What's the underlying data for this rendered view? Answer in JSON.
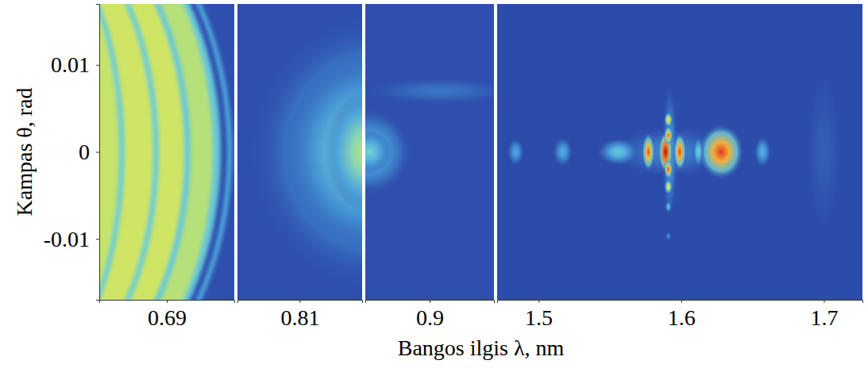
{
  "chart_data": {
    "type": "heatmap",
    "y_label": "Kampas θ, rad",
    "x_label": "Bangos ilgis λ, nm",
    "ylim": [
      -0.017,
      0.017
    ],
    "yticks": [
      0.01,
      0,
      -0.01
    ],
    "color_range": [
      0,
      1
    ],
    "panels": [
      {
        "type": "fringes",
        "xlim": [
          0.665,
          0.715
        ],
        "xticks": [
          0.69
        ],
        "background": 0.1,
        "spots": [
          {
            "x": 0.64,
            "y": 0,
            "rx": 0.0741,
            "ry": 0.032,
            "intensity": 0.27
          },
          {
            "x": 0.64,
            "y": 0,
            "rx": 0.0724,
            "ry": 0.0315,
            "intensity": 0.1
          },
          {
            "x": 0.64,
            "y": 0,
            "rx": 0.07,
            "ry": 0.031,
            "intensity": 0.33
          },
          {
            "x": 0.64,
            "y": 0,
            "rx": 0.0671,
            "ry": 0.031,
            "intensity": 0.45
          },
          {
            "x": 0.64,
            "y": 0,
            "rx": 0.0588,
            "ry": 0.029,
            "intensity": 0.33
          },
          {
            "x": 0.64,
            "y": 0,
            "rx": 0.0565,
            "ry": 0.0285,
            "intensity": 0.5
          },
          {
            "x": 0.64,
            "y": 0,
            "rx": 0.0471,
            "ry": 0.027,
            "intensity": 0.34
          },
          {
            "x": 0.64,
            "y": 0,
            "rx": 0.045,
            "ry": 0.0265,
            "intensity": 0.5
          },
          {
            "x": 0.64,
            "y": 0,
            "rx": 0.0344,
            "ry": 0.025,
            "intensity": 0.34
          },
          {
            "x": 0.64,
            "y": 0,
            "rx": 0.0324,
            "ry": 0.0245,
            "intensity": 0.48
          }
        ]
      },
      {
        "type": "spots",
        "xlim": [
          0.78,
          0.84
        ],
        "xticks": [
          0.81
        ],
        "background": 0.1,
        "spots": [
          {
            "x": 0.845,
            "y": 0,
            "rx": 0.06,
            "ry": 0.016,
            "intensity": 0.3
          },
          {
            "x": 0.843,
            "y": 0,
            "rx": 0.04,
            "ry": 0.011,
            "intensity": 0.42
          },
          {
            "x": 0.842,
            "y": 0,
            "rx": 0.02,
            "ry": 0.007,
            "intensity": 0.48
          }
        ]
      },
      {
        "type": "spots",
        "xlim": [
          0.87,
          0.93
        ],
        "xticks": [
          0.9
        ],
        "background": 0.1,
        "spots": [
          {
            "x": 0.905,
            "y": 0.007,
            "rx": 0.035,
            "ry": 0.0015,
            "intensity": 0.17
          },
          {
            "x": 0.872,
            "y": 0,
            "rx": 0.02,
            "ry": 0.005,
            "intensity": 0.3
          },
          {
            "x": 0.872,
            "y": 0,
            "rx": 0.01,
            "ry": 0.0025,
            "intensity": 0.36
          }
        ]
      },
      {
        "type": "spots",
        "xlim": [
          1.471,
          1.727
        ],
        "xticks": [
          1.5,
          1.6,
          1.7
        ],
        "background": 0.09,
        "spots": [
          {
            "x": 1.7,
            "y": 0,
            "rx": 0.012,
            "ry": 0.01,
            "intensity": 0.13
          },
          {
            "x": 1.592,
            "y": 0,
            "rx": 0.04,
            "ry": 0.003,
            "intensity": 0.2
          },
          {
            "x": 1.592,
            "y": 0,
            "rx": 0.0055,
            "ry": 0.008,
            "intensity": 0.25
          },
          {
            "x": 1.484,
            "y": 0,
            "rx": 0.006,
            "ry": 0.0016,
            "intensity": 0.26
          },
          {
            "x": 1.517,
            "y": 0,
            "rx": 0.007,
            "ry": 0.0017,
            "intensity": 0.27
          },
          {
            "x": 1.556,
            "y": 0,
            "rx": 0.015,
            "ry": 0.0016,
            "intensity": 0.33
          },
          {
            "x": 1.657,
            "y": 0,
            "rx": 0.006,
            "ry": 0.0018,
            "intensity": 0.28
          },
          {
            "x": 1.628,
            "y": 0,
            "rx": 0.016,
            "ry": 0.0032,
            "intensity": 0.83
          },
          {
            "x": 1.612,
            "y": 0,
            "rx": 0.004,
            "ry": 0.0018,
            "intensity": 0.35
          },
          {
            "x": 1.577,
            "y": 0,
            "rx": 0.0045,
            "ry": 0.0022,
            "intensity": 0.8
          },
          {
            "x": 1.599,
            "y": 0,
            "rx": 0.0045,
            "ry": 0.0022,
            "intensity": 0.82
          },
          {
            "x": 1.589,
            "y": 0,
            "rx": 0.005,
            "ry": 0.0024,
            "intensity": 0.95
          },
          {
            "x": 1.591,
            "y": 0.0037,
            "rx": 0.003,
            "ry": 0.0009,
            "intensity": 0.6
          },
          {
            "x": 1.591,
            "y": 0.0019,
            "rx": 0.003,
            "ry": 0.0011,
            "intensity": 0.78
          },
          {
            "x": 1.591,
            "y": -0.002,
            "rx": 0.003,
            "ry": 0.0011,
            "intensity": 0.8
          },
          {
            "x": 1.591,
            "y": -0.004,
            "rx": 0.003,
            "ry": 0.0009,
            "intensity": 0.55
          },
          {
            "x": 1.591,
            "y": -0.0063,
            "rx": 0.0025,
            "ry": 0.0007,
            "intensity": 0.3
          },
          {
            "x": 1.591,
            "y": -0.0097,
            "rx": 0.002,
            "ry": 0.0005,
            "intensity": 0.22
          }
        ]
      }
    ]
  }
}
